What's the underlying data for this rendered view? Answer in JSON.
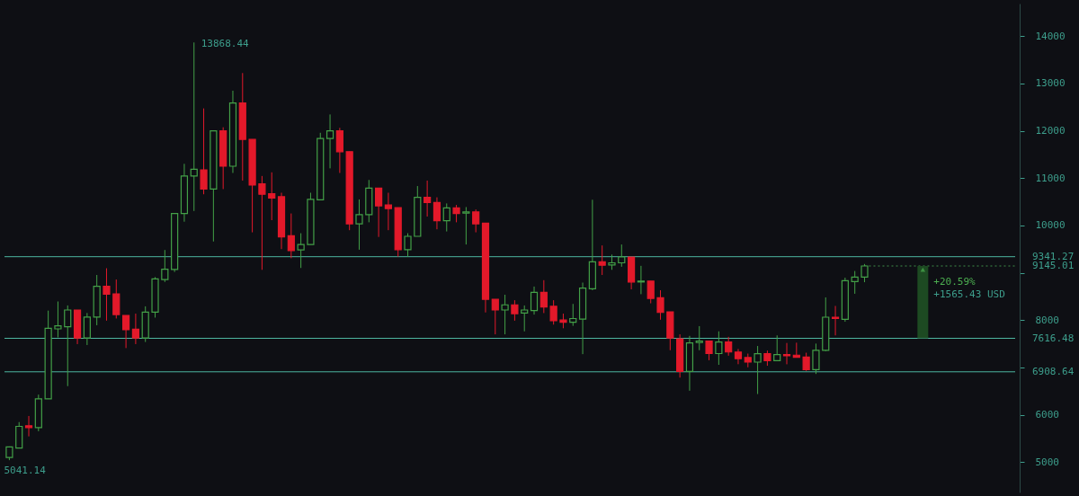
{
  "chart_data": {
    "type": "candlestick",
    "categories": [
      null,
      null,
      null,
      null,
      null,
      null,
      null,
      null,
      null,
      null,
      null,
      null,
      null,
      null,
      null,
      null,
      null,
      null,
      null,
      null,
      null,
      null,
      null,
      null,
      null,
      null,
      null,
      null,
      null,
      null,
      null,
      null,
      null,
      null,
      null,
      null,
      null,
      null,
      null,
      null,
      null,
      null,
      null,
      null,
      null,
      null,
      null,
      null,
      null,
      null,
      null,
      null,
      null,
      null,
      null,
      null,
      null,
      null,
      null,
      null,
      null,
      null,
      null,
      null,
      null,
      null,
      null,
      null,
      null,
      null,
      null,
      null,
      null,
      null,
      null,
      null,
      null,
      null,
      null,
      null,
      null,
      null,
      null,
      null,
      null,
      null,
      null,
      null,
      null,
      null,
      null,
      null,
      null,
      null,
      null,
      null,
      null,
      null,
      null,
      null,
      null,
      null,
      null,
      null
    ],
    "ohlc": [
      [
        5100,
        5330,
        5041.14,
        5320
      ],
      [
        5299,
        5846,
        5290,
        5756
      ],
      [
        5769,
        5975,
        5544,
        5730
      ],
      [
        5730,
        6426,
        5653,
        6336
      ],
      [
        6336,
        8202,
        6336,
        7829
      ],
      [
        7816,
        8395,
        7636,
        7880
      ],
      [
        7861,
        8311,
        6606,
        8215
      ],
      [
        8215,
        8215,
        7494,
        7623
      ],
      [
        7623,
        8151,
        7475,
        8067
      ],
      [
        8067,
        8955,
        7893,
        8717
      ],
      [
        8717,
        9097,
        7990,
        8550
      ],
      [
        8556,
        8859,
        8035,
        8118
      ],
      [
        8099,
        8099,
        7410,
        7797
      ],
      [
        7810,
        8138,
        7494,
        7623
      ],
      [
        7623,
        8292,
        7539,
        8170
      ],
      [
        8170,
        8910,
        8054,
        8871
      ],
      [
        8859,
        9483,
        8807,
        9077
      ],
      [
        9071,
        10255,
        9019,
        10255
      ],
      [
        10255,
        11304,
        10081,
        11047
      ],
      [
        11047,
        13868.44,
        10307,
        11188
      ],
      [
        11175,
        12475,
        10660,
        10770
      ],
      [
        10770,
        11999,
        9663,
        11999
      ],
      [
        11999,
        12076,
        10770,
        11253
      ],
      [
        11253,
        12849,
        11111,
        12591
      ],
      [
        12591,
        13222,
        10950,
        11819
      ],
      [
        11819,
        11819,
        9856,
        10854
      ],
      [
        10879,
        11047,
        9064,
        10660
      ],
      [
        10673,
        11124,
        10113,
        10583
      ],
      [
        10609,
        10693,
        9502,
        9759
      ],
      [
        9785,
        10255,
        9309,
        9470
      ],
      [
        9483,
        9837,
        9103,
        9599
      ],
      [
        9599,
        10693,
        9599,
        10551
      ],
      [
        10545,
        11960,
        10545,
        11838
      ],
      [
        11838,
        12347,
        11208,
        11999
      ],
      [
        11999,
        12064,
        11111,
        11561
      ],
      [
        11561,
        11561,
        9901,
        10036
      ],
      [
        10036,
        10551,
        9489,
        10229
      ],
      [
        10229,
        10963,
        10068,
        10789
      ],
      [
        10789,
        10789,
        9759,
        10416
      ],
      [
        10435,
        10693,
        9901,
        10358
      ],
      [
        10377,
        10377,
        9341,
        9489
      ],
      [
        9489,
        9837,
        9341,
        9772
      ],
      [
        9772,
        10834,
        9772,
        10596
      ],
      [
        10596,
        10950,
        10190,
        10487
      ],
      [
        10487,
        10596,
        9920,
        10100
      ],
      [
        10100,
        10467,
        9875,
        10371
      ],
      [
        10371,
        10435,
        10068,
        10255
      ],
      [
        10261,
        10390,
        9599,
        10287
      ],
      [
        10287,
        10339,
        9856,
        10036
      ],
      [
        10049,
        10049,
        8163,
        8440
      ],
      [
        8440,
        8440,
        7700,
        8215
      ],
      [
        8215,
        8537,
        7700,
        8324
      ],
      [
        8324,
        8421,
        7989,
        8138
      ],
      [
        8150,
        8311,
        7764,
        8215
      ],
      [
        8202,
        8710,
        8118,
        8588
      ],
      [
        8588,
        8845,
        8150,
        8279
      ],
      [
        8292,
        8421,
        7906,
        7989
      ],
      [
        8002,
        8138,
        7829,
        7957
      ],
      [
        7957,
        8343,
        7880,
        8034
      ],
      [
        8021,
        8794,
        7282,
        8678
      ],
      [
        8665,
        10545,
        8633,
        9232
      ],
      [
        9232,
        9579,
        8955,
        9161
      ],
      [
        9167,
        9386,
        9064,
        9212
      ],
      [
        9212,
        9599,
        9129,
        9335
      ],
      [
        9335,
        9335,
        8652,
        8807
      ],
      [
        8807,
        9148,
        8549,
        8826
      ],
      [
        8826,
        8826,
        8356,
        8459
      ],
      [
        8472,
        8633,
        8009,
        8163
      ],
      [
        8176,
        8176,
        7365,
        7623
      ],
      [
        7603,
        7700,
        6786,
        6915
      ],
      [
        6915,
        7668,
        6509,
        7520
      ],
      [
        7526,
        7874,
        7365,
        7558
      ],
      [
        7558,
        7558,
        7153,
        7294
      ],
      [
        7294,
        7764,
        7056,
        7539
      ],
      [
        7539,
        7648,
        7249,
        7327
      ],
      [
        7327,
        7391,
        7069,
        7185
      ],
      [
        7210,
        7293,
        7004,
        7113
      ],
      [
        7113,
        7454,
        6439,
        7293
      ],
      [
        7293,
        7357,
        7036,
        7145
      ],
      [
        7145,
        7678,
        7145,
        7274
      ],
      [
        7274,
        7518,
        7068,
        7248
      ],
      [
        7261,
        7524,
        7210,
        7216
      ],
      [
        7222,
        7312,
        6927,
        6953
      ],
      [
        6953,
        7505,
        6863,
        7364
      ],
      [
        7364,
        8481,
        7344,
        8063
      ],
      [
        8063,
        8301,
        7678,
        8037
      ],
      [
        8018,
        8898,
        7967,
        8834
      ],
      [
        8814,
        9039,
        8558,
        8911
      ],
      [
        8911,
        9187,
        8802,
        9145.01
      ],
      null,
      null,
      null,
      null,
      null,
      null,
      null,
      null,
      null,
      null,
      null,
      null,
      null,
      null,
      null
    ],
    "colors": [
      "#43a047",
      "#43a047",
      "#e3192a",
      "#43a047",
      "#43a047",
      "#43a047",
      "#43a047",
      "#e3192a",
      "#43a047",
      "#43a047",
      "#e3192a",
      "#e3192a",
      "#e3192a",
      "#e3192a",
      "#43a047",
      "#43a047",
      "#43a047",
      "#43a047",
      "#43a047",
      "#43a047",
      "#e3192a",
      "#43a047",
      "#e3192a",
      "#43a047",
      "#e3192a",
      "#e3192a",
      "#e3192a",
      "#e3192a",
      "#e3192a",
      "#e3192a",
      "#43a047",
      "#43a047",
      "#43a047",
      "#43a047",
      "#e3192a",
      "#e3192a",
      "#43a047",
      "#43a047",
      "#e3192a",
      "#e3192a",
      "#e3192a",
      "#43a047",
      "#43a047",
      "#e3192a",
      "#e3192a",
      "#43a047",
      "#e3192a",
      "#43a047",
      "#e3192a",
      "#e3192a",
      "#e3192a",
      "#43a047",
      "#e3192a",
      "#43a047",
      "#43a047",
      "#e3192a",
      "#e3192a",
      "#e3192a",
      "#43a047",
      "#43a047",
      "#43a047",
      "#e3192a",
      "#43a047",
      "#43a047",
      "#e3192a",
      "#43a047",
      "#e3192a",
      "#e3192a",
      "#e3192a",
      "#e3192a",
      "#43a047",
      "#43a047",
      "#e3192a",
      "#43a047",
      "#e3192a",
      "#e3192a",
      "#e3192a",
      "#43a047",
      "#e3192a",
      "#43a047",
      "#e3192a",
      "#e3192a",
      "#e3192a",
      "#43a047",
      "#43a047",
      "#e3192a",
      "#43a047",
      "#43a047",
      "#43a047",
      null,
      null,
      null,
      null,
      null,
      null,
      null,
      null,
      null,
      null,
      null,
      null,
      null,
      null,
      null
    ],
    "ylim": [
      4360,
      14690
    ],
    "yticks": [
      5000,
      6000,
      {
        "value": 7000,
        "label": null
      },
      8000,
      {
        "value": 9000,
        "label": null
      },
      10000,
      11000,
      12000,
      13000,
      14000
    ],
    "ref_lines": [
      {
        "axis": "y",
        "value": 9341.27,
        "label": "9341.27",
        "color": "#4db6a0"
      },
      {
        "axis": "y",
        "value": 7616.48,
        "label": "7616.48",
        "color": "#4db6a0"
      },
      {
        "axis": "y",
        "value": 6908.64,
        "label": "6908.64",
        "color": "#4db6a0"
      },
      {
        "axis": "y",
        "value": 9145.01,
        "label": "9145.01",
        "color": "#3f8f4a",
        "line_style": "dotted"
      }
    ],
    "annotations": [
      "13868.44",
      "5041.14",
      "+20.59%",
      "+1565.43 USD"
    ],
    "tick_labels": "y",
    "grid": false
  }
}
